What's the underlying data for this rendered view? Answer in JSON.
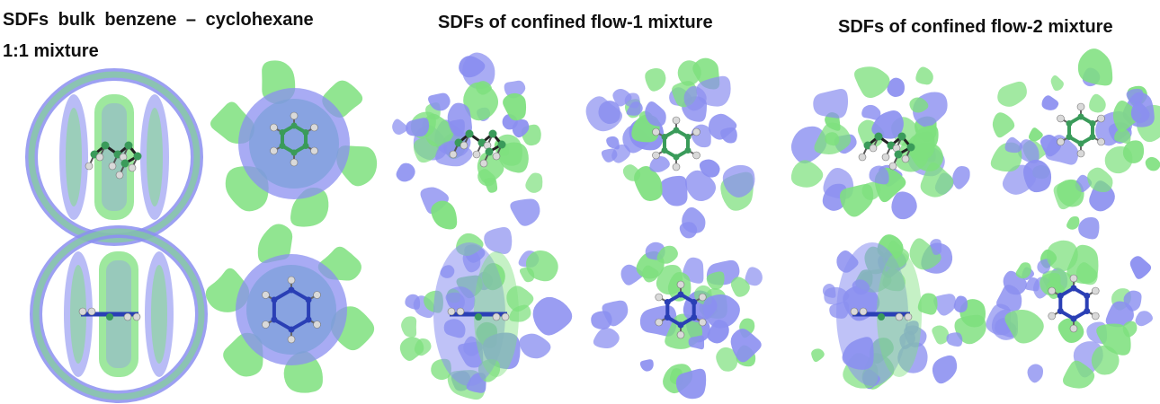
{
  "captions": {
    "bulk_line1": "SDFs bulk benzene – cyclohexane",
    "bulk_line2": "1:1 mixture",
    "flow1": "SDFs of confined flow-1 mixture",
    "flow2": "SDFs of confined flow-2 mixture"
  },
  "colors": {
    "green_isosurface": "#7ee07e",
    "blue_isosurface": "#8b8ff0",
    "atom_carbon": "#3a9b5a",
    "atom_hydrogen": "#d9d9d9",
    "benzene_ring": "#2a3fb5"
  },
  "panels": [
    {
      "group": "bulk",
      "row": "top",
      "molecule": "cyclohexane"
    },
    {
      "group": "bulk",
      "row": "top",
      "molecule": "benzene"
    },
    {
      "group": "bulk",
      "row": "bottom",
      "molecule": "cyclohexane"
    },
    {
      "group": "bulk",
      "row": "bottom",
      "molecule": "benzene"
    },
    {
      "group": "flow-1",
      "row": "top",
      "molecule": "cyclohexane"
    },
    {
      "group": "flow-1",
      "row": "top",
      "molecule": "benzene"
    },
    {
      "group": "flow-1",
      "row": "bottom",
      "molecule": "cyclohexane"
    },
    {
      "group": "flow-1",
      "row": "bottom",
      "molecule": "benzene"
    },
    {
      "group": "flow-2",
      "row": "top",
      "molecule": "cyclohexane"
    },
    {
      "group": "flow-2",
      "row": "top",
      "molecule": "benzene"
    },
    {
      "group": "flow-2",
      "row": "bottom",
      "molecule": "cyclohexane"
    },
    {
      "group": "flow-2",
      "row": "bottom",
      "molecule": "benzene"
    }
  ]
}
